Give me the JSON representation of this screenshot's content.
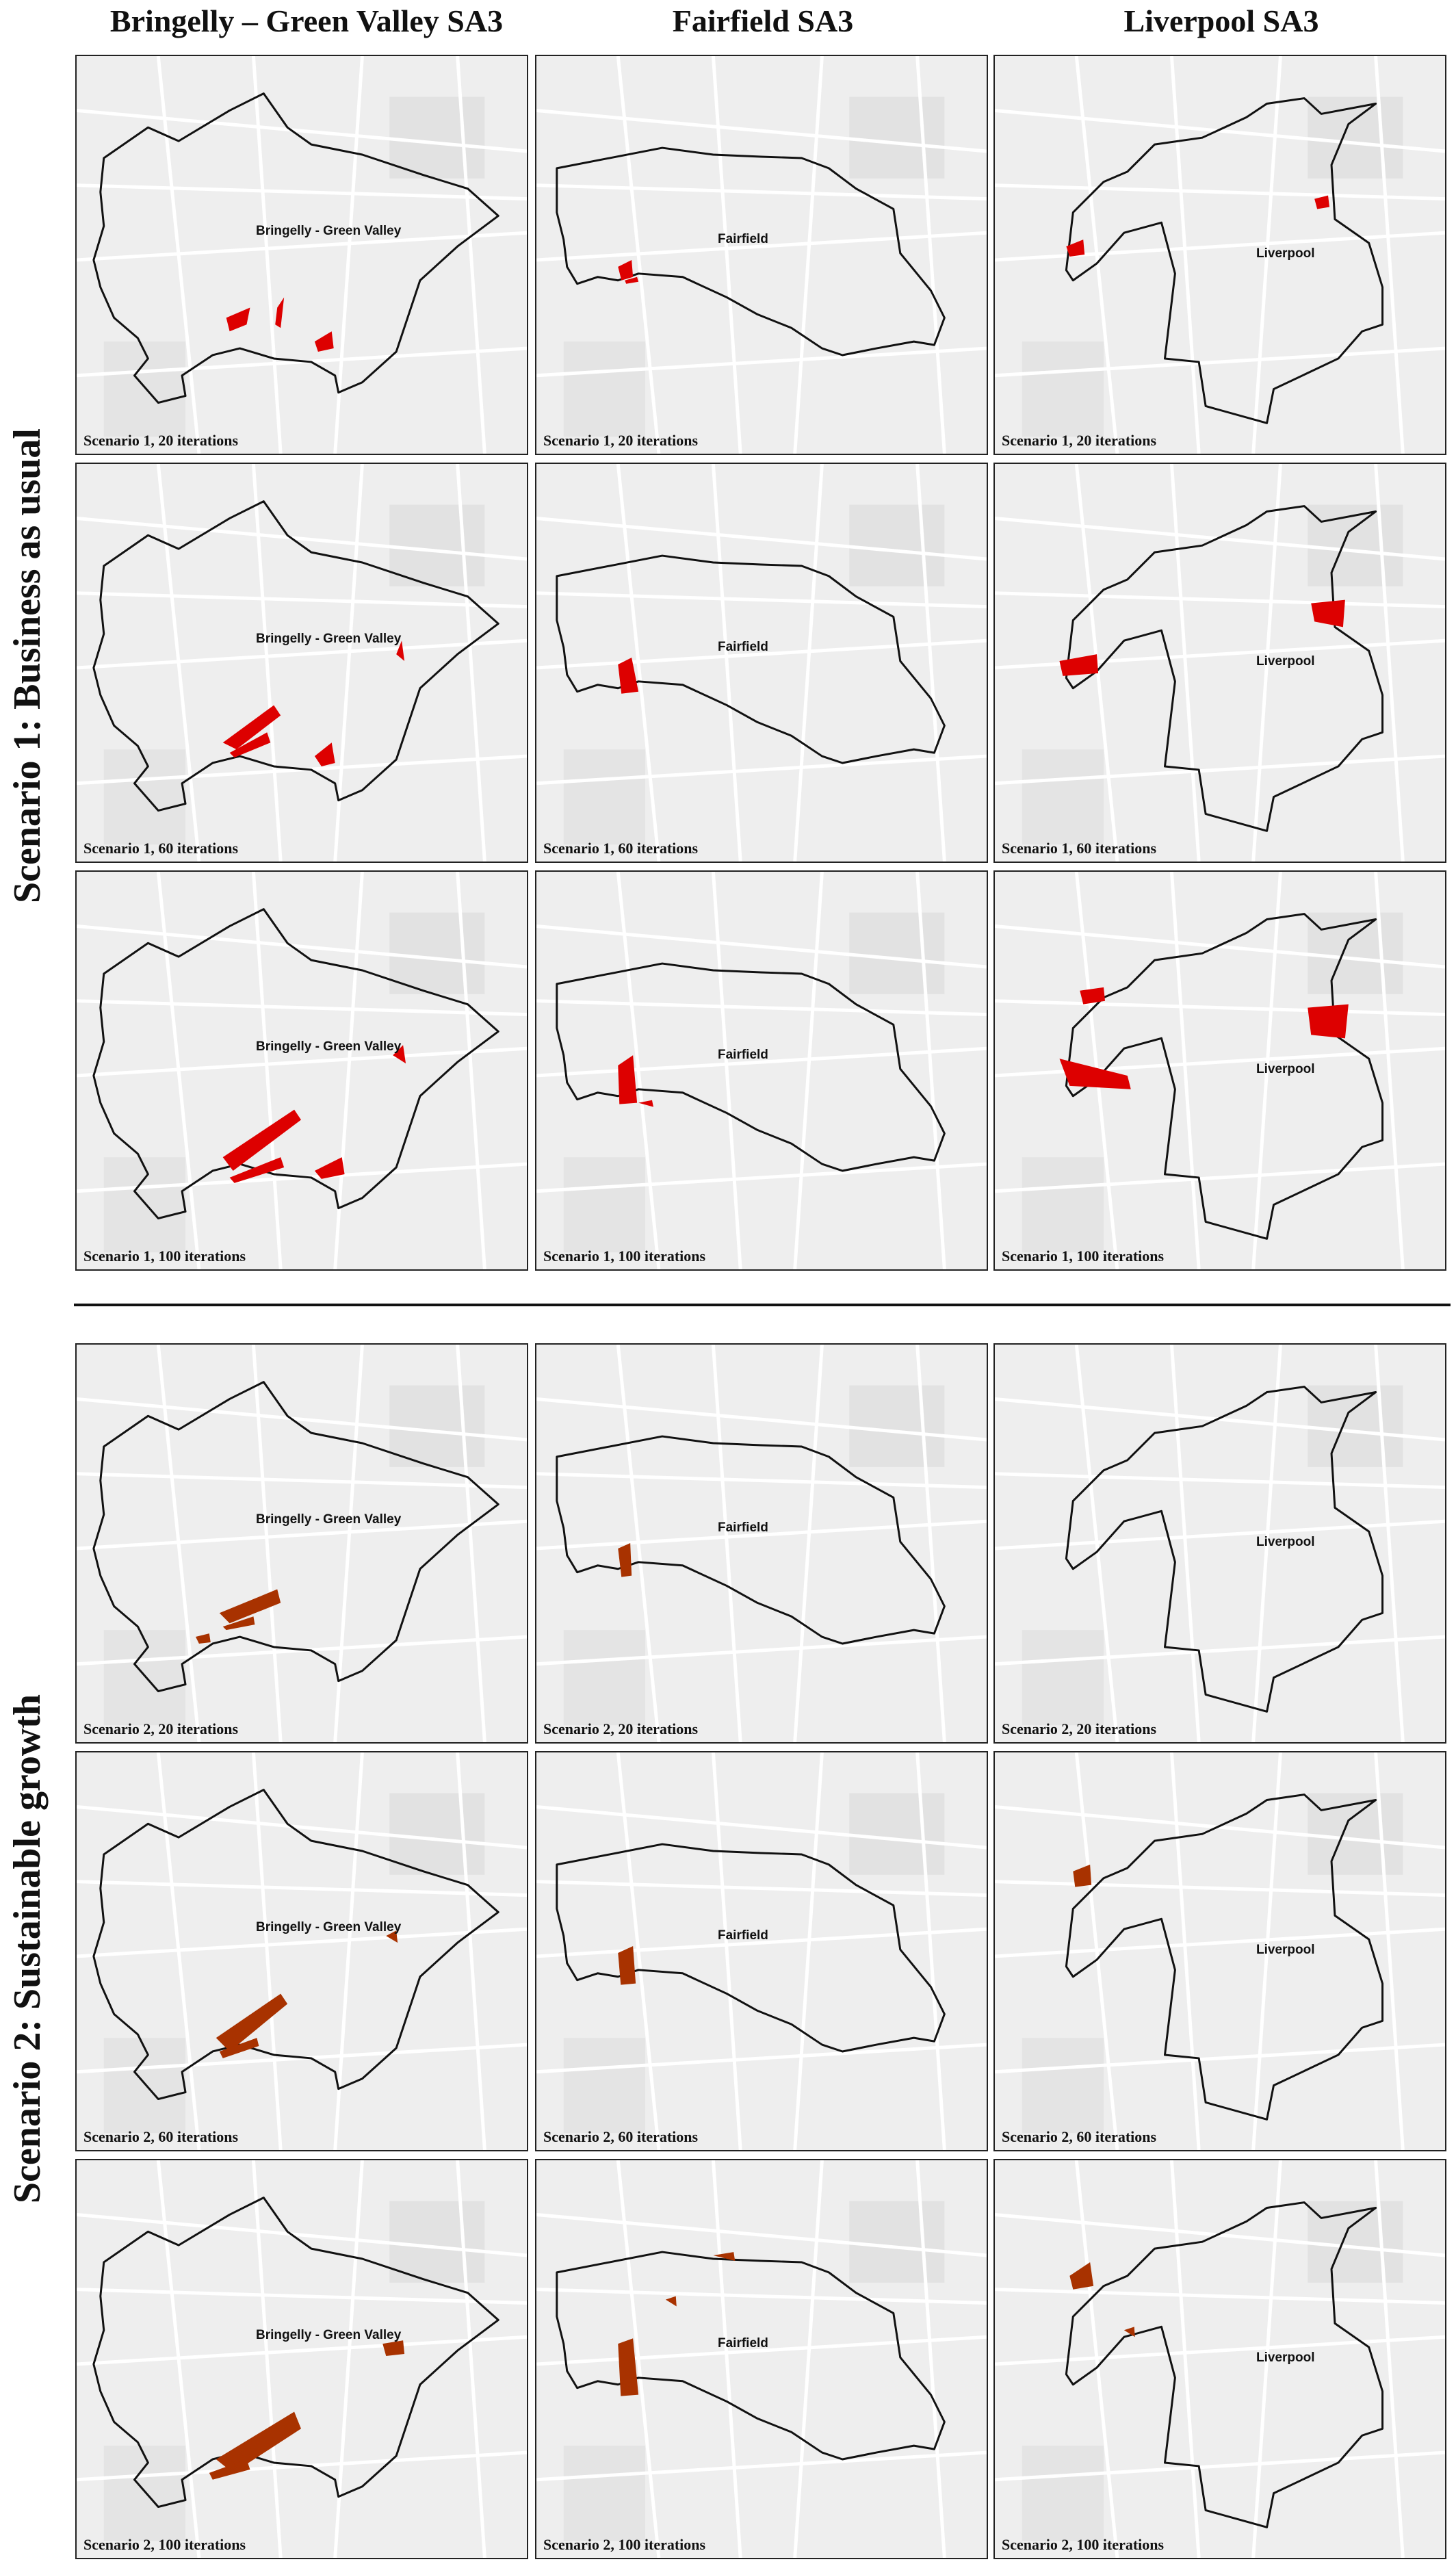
{
  "columns": [
    "Bringelly – Green Valley SA3",
    "Fairfield SA3",
    "Liverpool SA3"
  ],
  "row_groups": [
    "Scenario 1: Business as usual",
    "Scenario 2: Sustainable growth"
  ],
  "place_labels": [
    "Bringelly - Green Valley",
    "Fairfield",
    "Liverpool"
  ],
  "captions": [
    "Scenario 1, 20 iterations",
    "Scenario 1, 60 iterations",
    "Scenario 1, 100 iterations",
    "Scenario 2, 20 iterations",
    "Scenario 2, 60 iterations",
    "Scenario 2, 100 iterations"
  ],
  "colors": {
    "scenario1_growth": "#dd0000",
    "scenario2_growth": "#a83200",
    "basemap": "#eeeeee",
    "roads": "#ffffff",
    "boundary": "#111111"
  }
}
